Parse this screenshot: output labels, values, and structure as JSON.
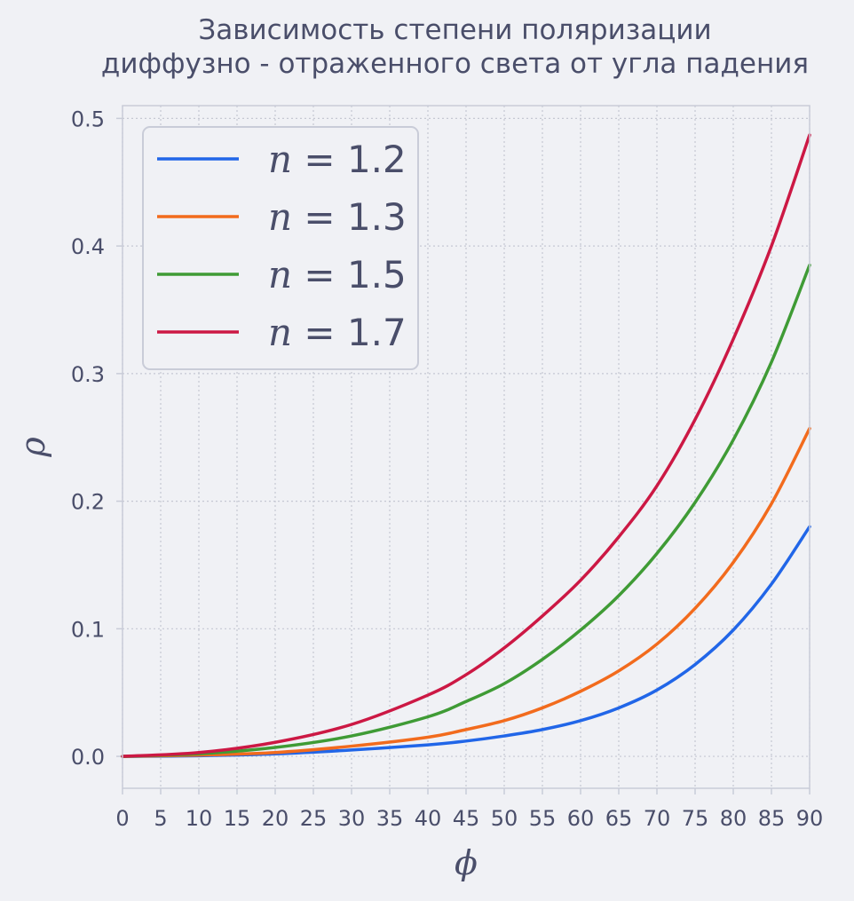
{
  "chart_data": {
    "type": "line",
    "title_line1": "Зависимость степени поляризации",
    "title_line2": "диффузно - отраженного света от угла падения",
    "xlabel": "ϕ",
    "ylabel": "ρ",
    "xlim": [
      0,
      90
    ],
    "ylim": [
      -0.025,
      0.51
    ],
    "x_ticks": [
      0,
      5,
      10,
      15,
      20,
      25,
      30,
      35,
      40,
      45,
      50,
      55,
      60,
      65,
      70,
      75,
      80,
      85,
      90
    ],
    "y_ticks": [
      0.0,
      0.1,
      0.2,
      0.3,
      0.4,
      0.5
    ],
    "y_tick_labels": [
      "0.0",
      "0.1",
      "0.2",
      "0.3",
      "0.4",
      "0.5"
    ],
    "grid": true,
    "legend_position": "top-left",
    "x": [
      0,
      10,
      20,
      30,
      40,
      45,
      50,
      55,
      60,
      65,
      70,
      75,
      80,
      85,
      90
    ],
    "series": [
      {
        "name": "n = 1.2",
        "legend_n": "1.2",
        "color": "#2166e8",
        "values": [
          0.0,
          0.0005,
          0.002,
          0.005,
          0.009,
          0.012,
          0.016,
          0.021,
          0.028,
          0.038,
          0.052,
          0.072,
          0.099,
          0.135,
          0.18
        ]
      },
      {
        "name": "n = 1.3",
        "legend_n": "1.3",
        "color": "#f26b1d",
        "values": [
          0.0,
          0.001,
          0.003,
          0.008,
          0.015,
          0.021,
          0.028,
          0.038,
          0.051,
          0.067,
          0.088,
          0.116,
          0.152,
          0.198,
          0.257
        ]
      },
      {
        "name": "n = 1.5",
        "legend_n": "1.5",
        "color": "#3f9b35",
        "values": [
          0.0,
          0.002,
          0.007,
          0.016,
          0.031,
          0.043,
          0.057,
          0.076,
          0.099,
          0.126,
          0.159,
          0.199,
          0.248,
          0.309,
          0.385
        ]
      },
      {
        "name": "n = 1.7",
        "legend_n": "1.7",
        "color": "#cc1844",
        "values": [
          0.0,
          0.003,
          0.011,
          0.025,
          0.048,
          0.064,
          0.085,
          0.11,
          0.138,
          0.172,
          0.212,
          0.264,
          0.327,
          0.4,
          0.487
        ]
      }
    ]
  }
}
